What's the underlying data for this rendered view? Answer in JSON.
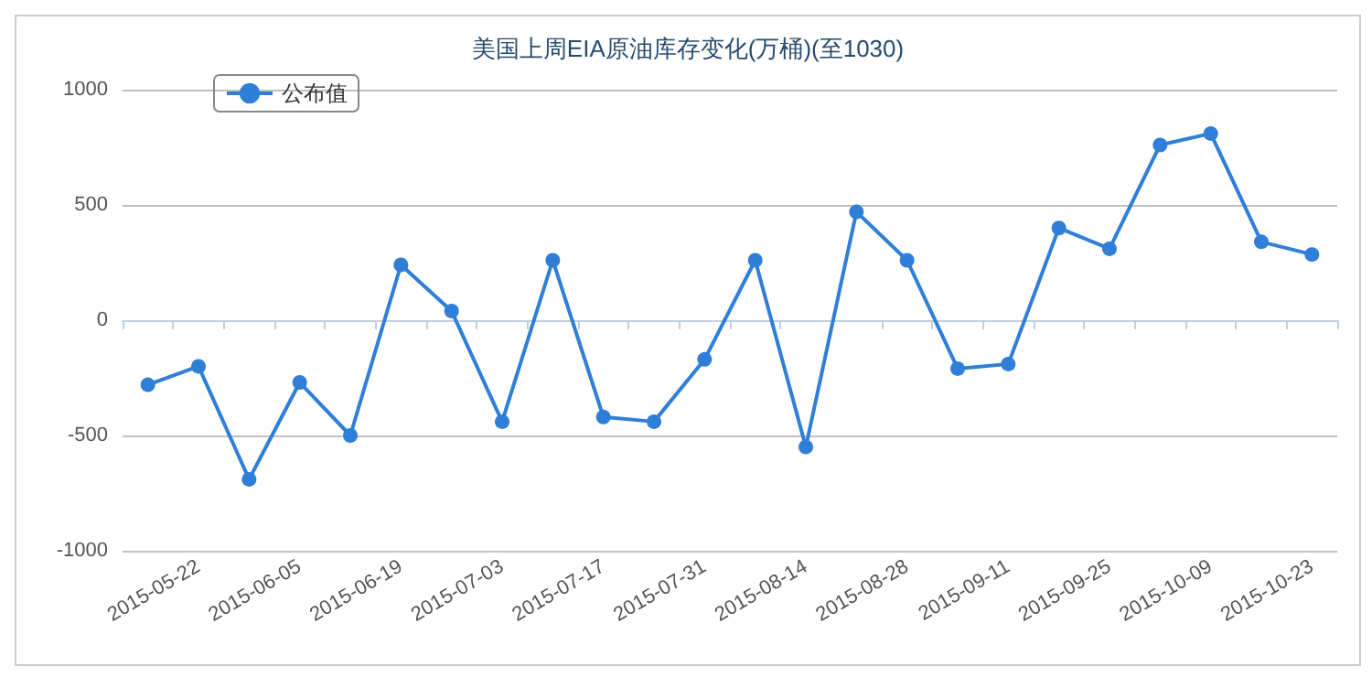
{
  "chart_data": {
    "type": "line",
    "title": "美国上周EIA原油库存变化(万桶)(至1030)",
    "categories": [
      null,
      "2015-05-22",
      null,
      "2015-06-05",
      null,
      "2015-06-19",
      null,
      "2015-07-03",
      null,
      "2015-07-17",
      null,
      "2015-07-31",
      null,
      "2015-08-14",
      null,
      "2015-08-28",
      null,
      "2015-09-11",
      null,
      "2015-09-25",
      null,
      "2015-10-09",
      null,
      "2015-10-23"
    ],
    "series": [
      {
        "name": "公布值",
        "color": "#2f7ed8",
        "values": [
          -280,
          -200,
          -690,
          -270,
          -500,
          240,
          40,
          -440,
          260,
          -420,
          -440,
          -170,
          260,
          -550,
          470,
          260,
          -210,
          -190,
          400,
          310,
          760,
          810,
          340,
          285
        ]
      }
    ],
    "ylim": [
      -1000,
      1000
    ],
    "yticks": [
      -1000,
      -500,
      0,
      500,
      1000
    ],
    "grid": "y",
    "legend": "top left",
    "marker": "circle",
    "line_style": "solid"
  }
}
